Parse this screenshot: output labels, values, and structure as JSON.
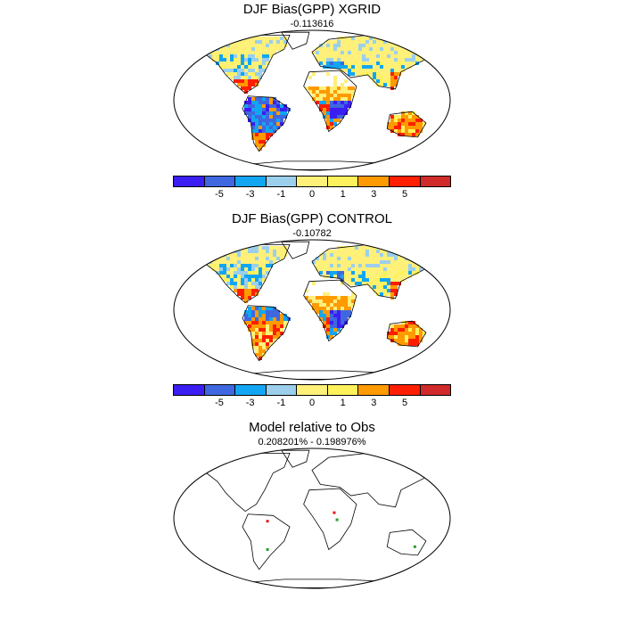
{
  "panels": [
    {
      "title": "DJF Bias(GPP) XGRID",
      "subtitle": "-0.113616",
      "scheme": "xgrid"
    },
    {
      "title": "DJF Bias(GPP) CONTROL",
      "subtitle": "-0.10782",
      "scheme": "control"
    },
    {
      "title": "Model relative to Obs",
      "subtitle": "0.208201% - 0.198976%",
      "scheme": "relative"
    }
  ],
  "colorbar": {
    "colors": [
      "#3b1ef2",
      "#3f67e0",
      "#12a5f2",
      "#9bcfec",
      "#fff07a",
      "#fef25c",
      "#ff9a00",
      "#ff1e00",
      "#d02a2a"
    ],
    "labels": [
      "-5",
      "-3",
      "-1",
      "0",
      "1",
      "3",
      "5"
    ]
  },
  "palette": {
    "land_default": "#fff07a",
    "ocean": "#ffffff",
    "coastline": "#000000",
    "marker_red": "#e31a1c",
    "marker_green": "#2ca02c"
  }
}
